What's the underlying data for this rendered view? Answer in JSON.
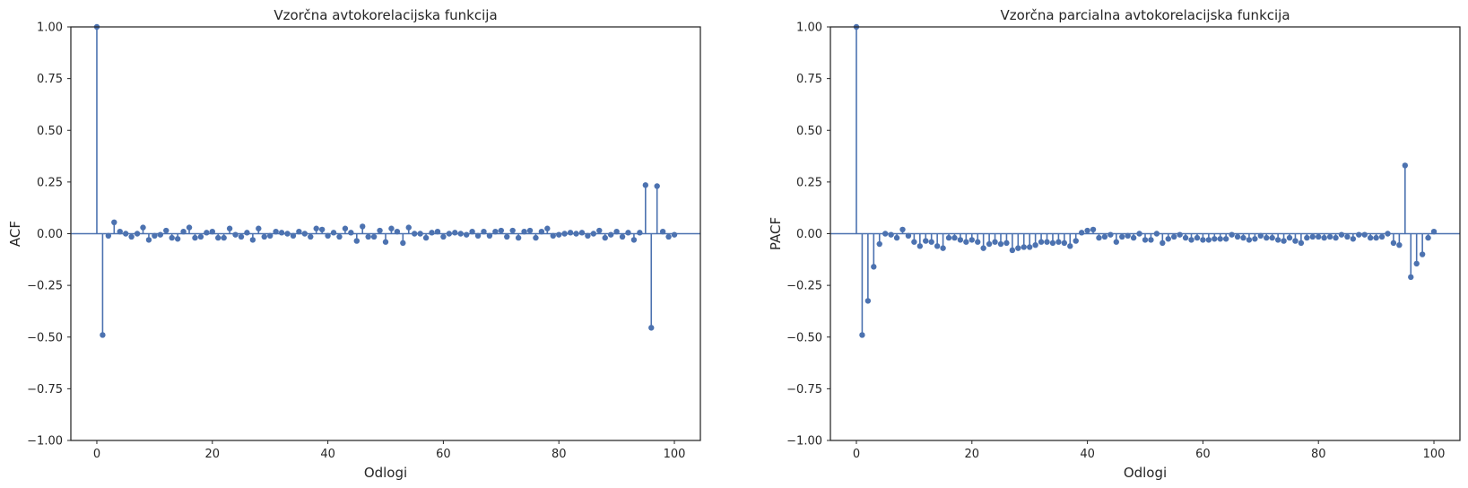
{
  "chart_data": [
    {
      "type": "stem",
      "title": "Vzorčna avtokorelacijska funkcija",
      "xlabel": "Odlogi",
      "ylabel": "ACF",
      "xlim": [
        -4.5,
        104.5
      ],
      "ylim": [
        -1.0,
        1.0
      ],
      "xticks": [
        "0",
        "20",
        "40",
        "60",
        "80",
        "100"
      ],
      "yticks": [
        "1.00",
        "0.75",
        "0.50",
        "0.25",
        "0.00",
        "−0.25",
        "−0.50",
        "−0.75",
        "−1.00"
      ],
      "color": "#4c72b0",
      "grid": false,
      "x": [
        0,
        1,
        2,
        3,
        4,
        5,
        6,
        7,
        8,
        9,
        10,
        11,
        12,
        13,
        14,
        15,
        16,
        17,
        18,
        19,
        20,
        21,
        22,
        23,
        24,
        25,
        26,
        27,
        28,
        29,
        30,
        31,
        32,
        33,
        34,
        35,
        36,
        37,
        38,
        39,
        40,
        41,
        42,
        43,
        44,
        45,
        46,
        47,
        48,
        49,
        50,
        51,
        52,
        53,
        54,
        55,
        56,
        57,
        58,
        59,
        60,
        61,
        62,
        63,
        64,
        65,
        66,
        67,
        68,
        69,
        70,
        71,
        72,
        73,
        74,
        75,
        76,
        77,
        78,
        79,
        80,
        81,
        82,
        83,
        84,
        85,
        86,
        87,
        88,
        89,
        90,
        91,
        92,
        93,
        94,
        95,
        96,
        97,
        98,
        99,
        100
      ],
      "values": [
        1.0,
        -0.49,
        -0.01,
        0.055,
        0.01,
        0.0,
        -0.015,
        0.0,
        0.03,
        -0.03,
        -0.01,
        -0.005,
        0.015,
        -0.02,
        -0.025,
        0.01,
        0.03,
        -0.02,
        -0.015,
        0.005,
        0.01,
        -0.02,
        -0.02,
        0.025,
        -0.005,
        -0.015,
        0.005,
        -0.03,
        0.025,
        -0.015,
        -0.01,
        0.01,
        0.005,
        0.0,
        -0.01,
        0.01,
        0.0,
        -0.015,
        0.025,
        0.02,
        -0.01,
        0.005,
        -0.015,
        0.025,
        0.005,
        -0.035,
        0.035,
        -0.015,
        -0.015,
        0.015,
        -0.04,
        0.025,
        0.01,
        -0.045,
        0.03,
        0.0,
        0.0,
        -0.02,
        0.005,
        0.01,
        -0.015,
        0.0,
        0.005,
        0.0,
        -0.005,
        0.01,
        -0.01,
        0.01,
        -0.01,
        0.01,
        0.015,
        -0.015,
        0.015,
        -0.02,
        0.01,
        0.015,
        -0.02,
        0.01,
        0.025,
        -0.01,
        -0.005,
        0.0,
        0.005,
        0.0,
        0.005,
        -0.01,
        0.0,
        0.015,
        -0.02,
        -0.005,
        0.01,
        -0.015,
        0.005,
        -0.03,
        0.005,
        0.235,
        -0.455,
        0.23,
        0.01,
        -0.015,
        -0.005
      ]
    },
    {
      "type": "stem",
      "title": "Vzorčna parcialna avtokorelacijska funkcija",
      "xlabel": "Odlogi",
      "ylabel": "PACF",
      "xlim": [
        -4.5,
        104.5
      ],
      "ylim": [
        -1.0,
        1.0
      ],
      "xticks": [
        "0",
        "20",
        "40",
        "60",
        "80",
        "100"
      ],
      "yticks": [
        "1.00",
        "0.75",
        "0.50",
        "0.25",
        "0.00",
        "−0.25",
        "−0.50",
        "−0.75",
        "−1.00"
      ],
      "color": "#4c72b0",
      "grid": false,
      "x": [
        0,
        1,
        2,
        3,
        4,
        5,
        6,
        7,
        8,
        9,
        10,
        11,
        12,
        13,
        14,
        15,
        16,
        17,
        18,
        19,
        20,
        21,
        22,
        23,
        24,
        25,
        26,
        27,
        28,
        29,
        30,
        31,
        32,
        33,
        34,
        35,
        36,
        37,
        38,
        39,
        40,
        41,
        42,
        43,
        44,
        45,
        46,
        47,
        48,
        49,
        50,
        51,
        52,
        53,
        54,
        55,
        56,
        57,
        58,
        59,
        60,
        61,
        62,
        63,
        64,
        65,
        66,
        67,
        68,
        69,
        70,
        71,
        72,
        73,
        74,
        75,
        76,
        77,
        78,
        79,
        80,
        81,
        82,
        83,
        84,
        85,
        86,
        87,
        88,
        89,
        90,
        91,
        92,
        93,
        94,
        95,
        96,
        97,
        98,
        99,
        100
      ],
      "values": [
        1.0,
        -0.49,
        -0.325,
        -0.16,
        -0.05,
        0.0,
        -0.005,
        -0.02,
        0.02,
        -0.01,
        -0.04,
        -0.06,
        -0.035,
        -0.04,
        -0.06,
        -0.07,
        -0.02,
        -0.02,
        -0.03,
        -0.04,
        -0.03,
        -0.04,
        -0.07,
        -0.05,
        -0.04,
        -0.05,
        -0.045,
        -0.08,
        -0.07,
        -0.065,
        -0.065,
        -0.055,
        -0.04,
        -0.04,
        -0.045,
        -0.04,
        -0.045,
        -0.06,
        -0.035,
        0.005,
        0.015,
        0.02,
        -0.02,
        -0.015,
        -0.005,
        -0.04,
        -0.015,
        -0.01,
        -0.02,
        0.0,
        -0.03,
        -0.03,
        0.0,
        -0.045,
        -0.025,
        -0.015,
        -0.005,
        -0.02,
        -0.03,
        -0.02,
        -0.03,
        -0.03,
        -0.025,
        -0.025,
        -0.025,
        -0.005,
        -0.015,
        -0.02,
        -0.03,
        -0.025,
        -0.01,
        -0.02,
        -0.02,
        -0.03,
        -0.035,
        -0.02,
        -0.035,
        -0.045,
        -0.02,
        -0.015,
        -0.015,
        -0.02,
        -0.015,
        -0.02,
        -0.005,
        -0.015,
        -0.025,
        -0.005,
        -0.005,
        -0.02,
        -0.02,
        -0.015,
        0.0,
        -0.045,
        -0.055,
        0.33,
        -0.21,
        -0.145,
        -0.1,
        -0.02,
        0.01
      ]
    }
  ]
}
